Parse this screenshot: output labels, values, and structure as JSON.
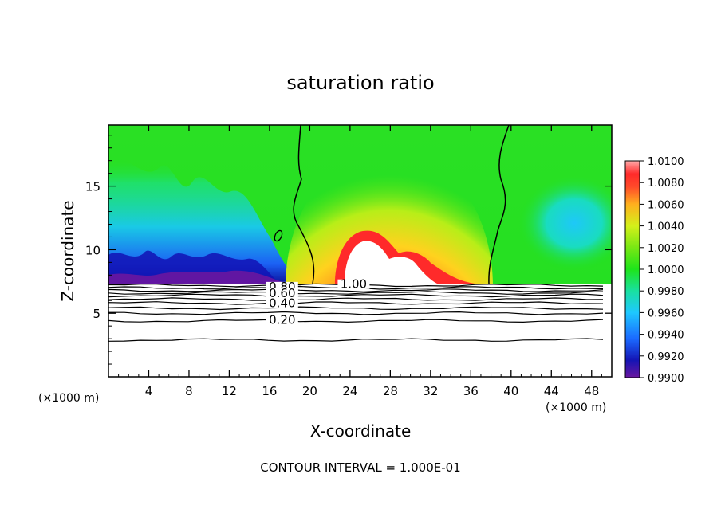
{
  "chart_data": {
    "type": "heatmap",
    "title": "saturation ratio",
    "xlabel": "X-coordinate",
    "ylabel": "Z-coordinate",
    "x_unit_left": "(×1000 m)",
    "x_unit_right": "(×1000 m)",
    "xlim": [
      0,
      50
    ],
    "ylim": [
      0,
      19.8
    ],
    "x_ticks": [
      4,
      8,
      12,
      16,
      20,
      24,
      28,
      32,
      36,
      40,
      44,
      48
    ],
    "y_ticks": [
      5,
      10,
      15
    ],
    "colorbar": {
      "min": 0.99,
      "max": 1.01,
      "labels": [
        "1.0100",
        "1.0080",
        "1.0060",
        "1.0040",
        "1.0020",
        "1.0000",
        "0.9980",
        "0.9960",
        "0.9940",
        "0.9920",
        "0.9900"
      ],
      "colors": [
        "#ff4a3a",
        "#ff8a2a",
        "#ffce1e",
        "#d4f01a",
        "#78e814",
        "#1ee41a",
        "#19e0a0",
        "#1ec8ff",
        "#1b6aff",
        "#1616c8",
        "#6a16a0"
      ]
    },
    "contour_labels": [
      {
        "text": "1.00",
        "x": 24.2,
        "y": 7.1
      },
      {
        "text": "0.80",
        "x": 17.1,
        "y": 6.9
      },
      {
        "text": "0.60",
        "x": 17.1,
        "y": 6.4
      },
      {
        "text": "0.40",
        "x": 17.1,
        "y": 5.6
      },
      {
        "text": "0.20",
        "x": 17.1,
        "y": 4.3
      }
    ],
    "contour_levels_below": [
      7.2,
      7.0,
      6.8,
      6.6,
      6.4,
      6.1,
      5.8,
      5.4,
      5.0,
      4.4,
      2.9
    ],
    "annotation": "CONTOUR INTERVAL = 1.000E-01"
  },
  "colors": {
    "background": "#ffffff",
    "axis": "#000000",
    "plot_base": "#22e020"
  }
}
